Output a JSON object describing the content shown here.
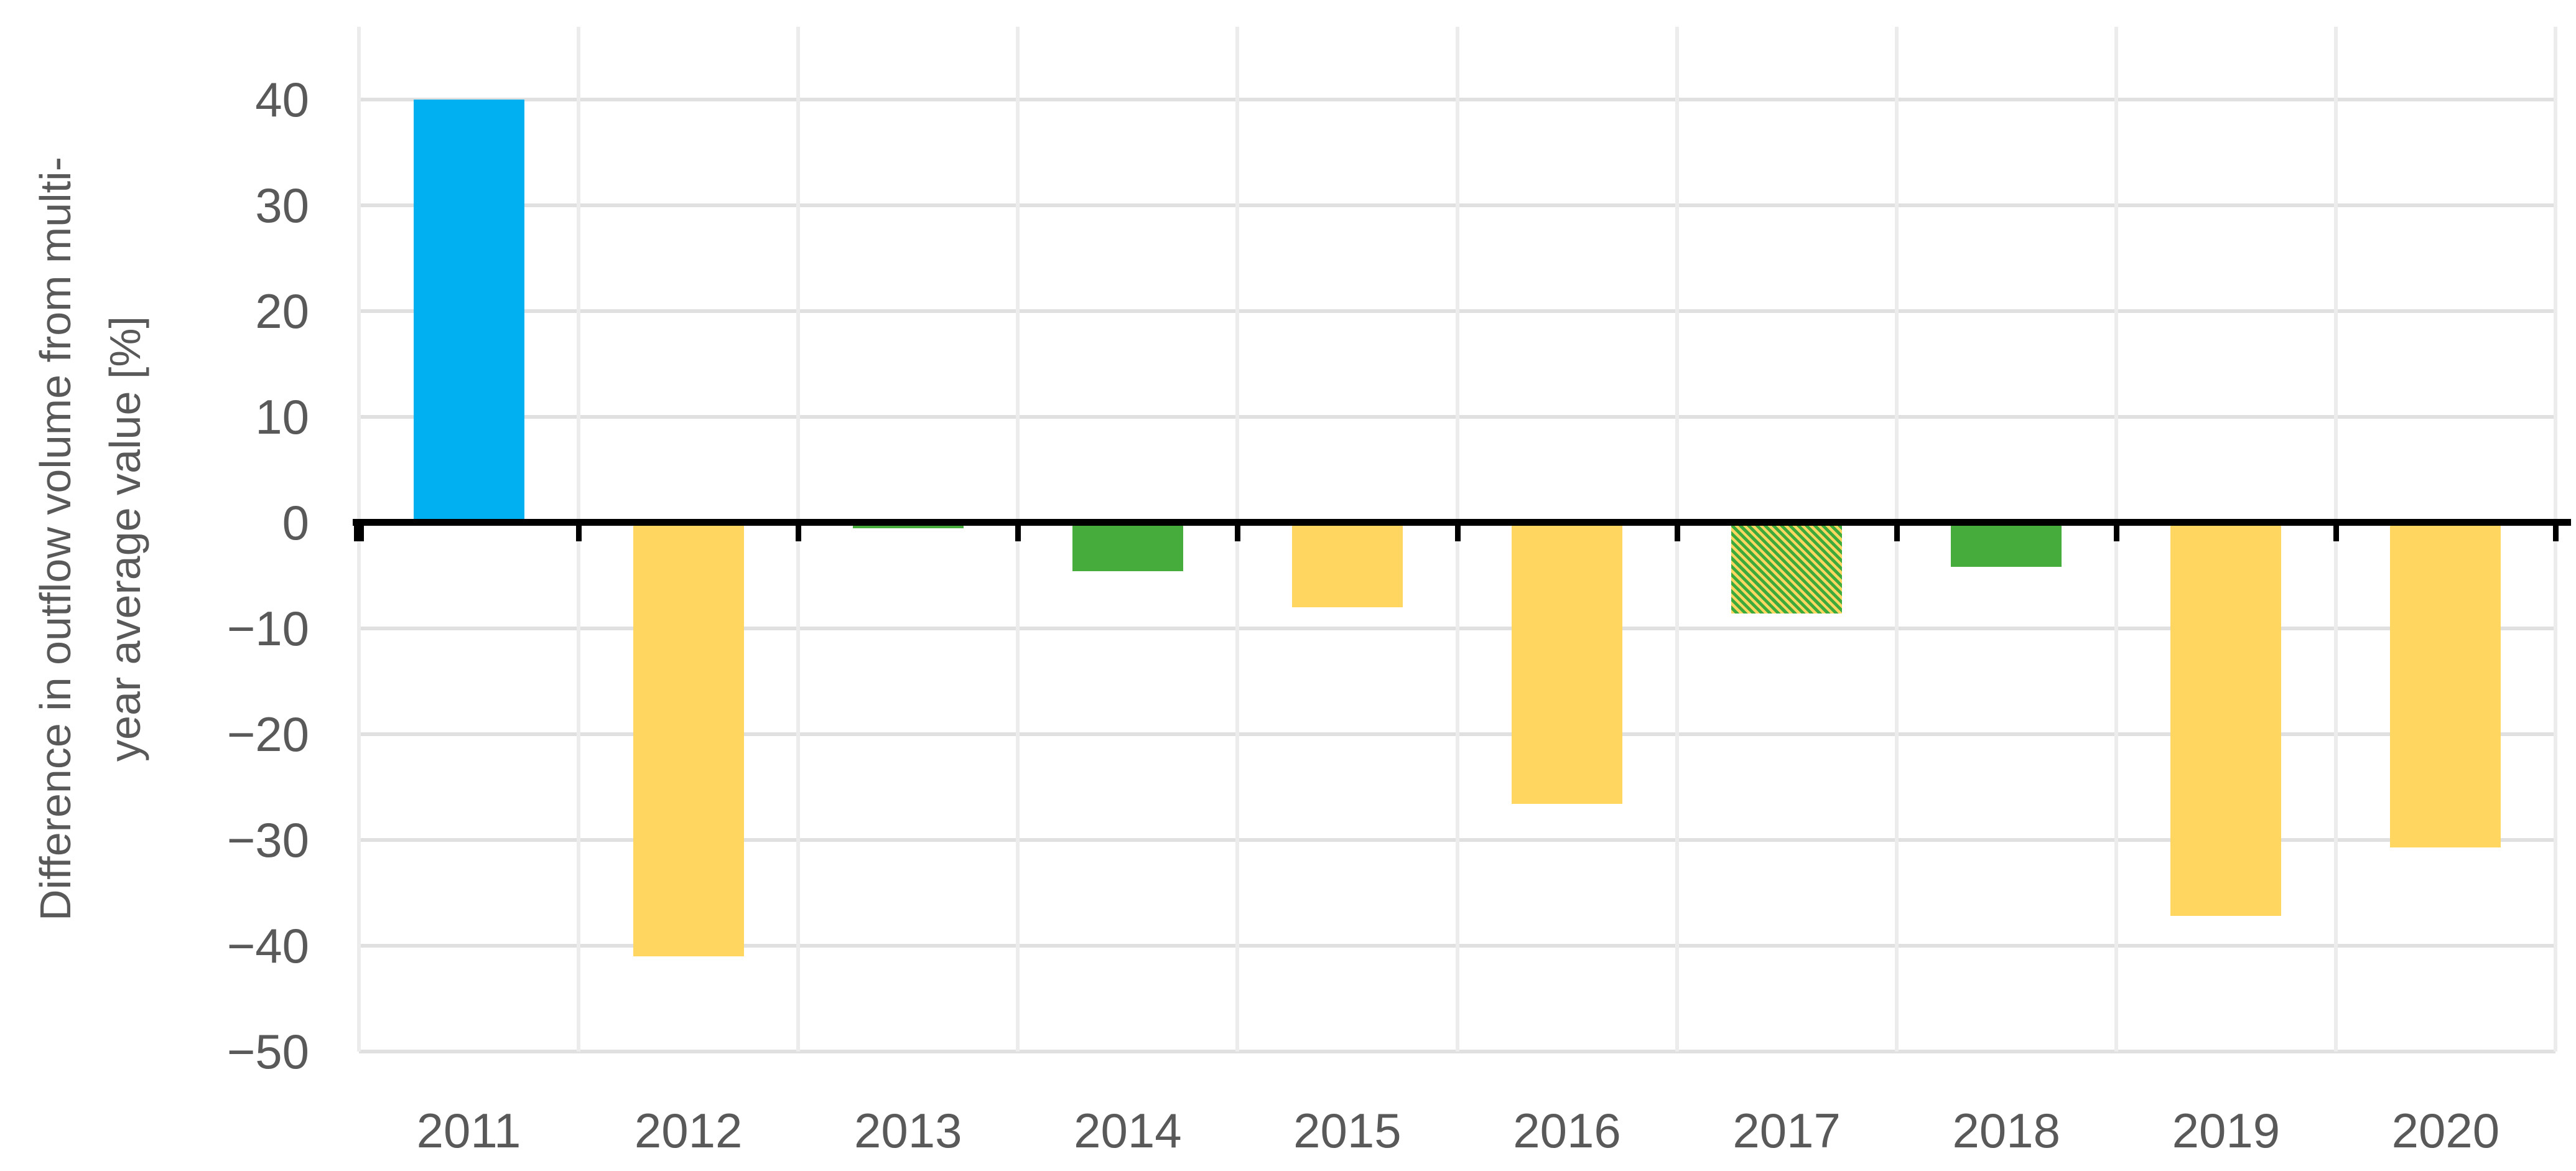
{
  "chart_data": {
    "type": "bar",
    "title": "",
    "ylabel": "Difference in outflow volume from multi-year average value [%]",
    "ylabel_lines": [
      "Difference in outflow volume from multi-",
      "year average value [%]"
    ],
    "xlabel": "",
    "categories": [
      "2011",
      "2012",
      "2013",
      "2014",
      "2015",
      "2016",
      "2017",
      "2018",
      "2019",
      "2020"
    ],
    "values": [
      40,
      -41,
      -0.5,
      -4.6,
      -8,
      -26.6,
      -8.6,
      -4.2,
      -37.2,
      -30.7
    ],
    "bar_styles": [
      "blue",
      "yellow",
      "green",
      "green",
      "yellow",
      "yellow",
      "hatch-green-on-yellow",
      "green",
      "yellow",
      "yellow"
    ],
    "y_ticks": [
      40,
      30,
      20,
      10,
      0,
      -10,
      -20,
      -30,
      -40,
      -50
    ],
    "y_tick_labels": [
      "40",
      "30",
      "20",
      "10",
      "0",
      "−10",
      "−20",
      "−30",
      "−40",
      "−50"
    ],
    "ylim": [
      -50,
      47
    ],
    "grid": true,
    "legend": "none",
    "colors": {
      "blue": "#00B0F0",
      "yellow": "#FFD65F",
      "green": "#46AC3C",
      "hatch_background": "#FFD65F",
      "hatch_stripe": "#3CAB3C",
      "axis_label_text": "#595959",
      "gridline": "#E0E0E0",
      "zero_axis_line": "#000000"
    }
  }
}
